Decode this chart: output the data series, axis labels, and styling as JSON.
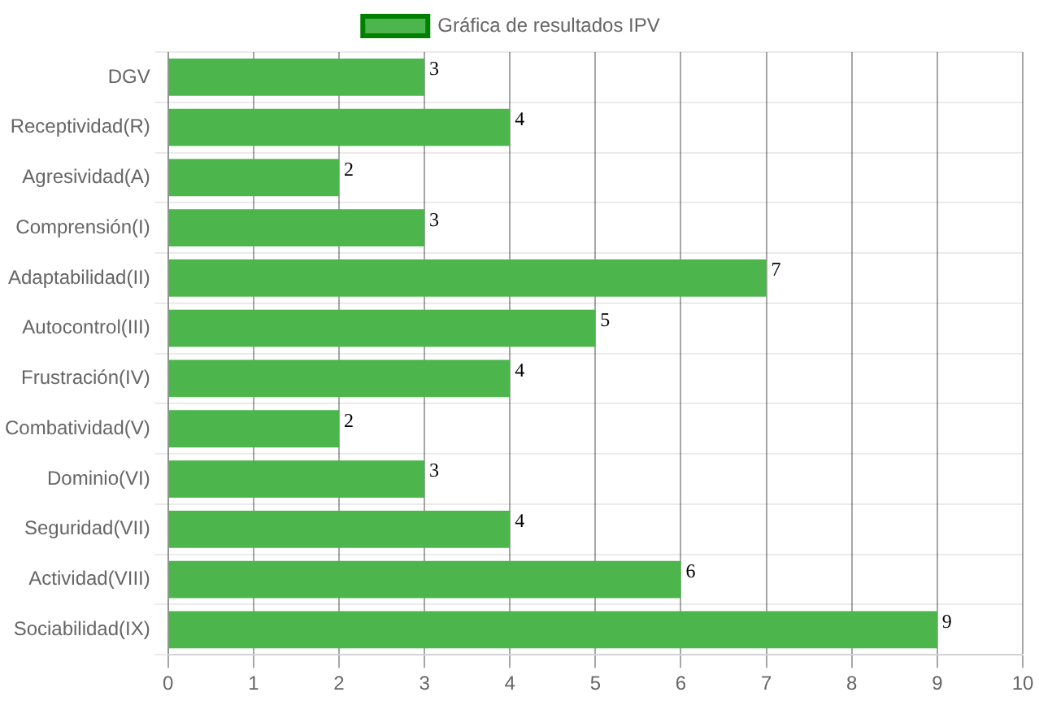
{
  "chart_data": {
    "type": "bar",
    "orientation": "horizontal",
    "categories": [
      "DGV",
      "Receptividad(R)",
      "Agresividad(A)",
      "Comprensión(I)",
      "Adaptabilidad(II)",
      "Autocontrol(III)",
      "Frustración(IV)",
      "Combatividad(V)",
      "Dominio(VI)",
      "Seguridad(VII)",
      "Actividad(VIII)",
      "Sociabilidad(IX)"
    ],
    "series": [
      {
        "name": "Gráfica de resultados IPV",
        "color": "#4cb54c",
        "values": [
          3,
          4,
          2,
          3,
          7,
          5,
          4,
          2,
          3,
          4,
          6,
          9
        ]
      }
    ],
    "xlim": [
      0,
      10
    ],
    "xticks": [
      0,
      1,
      2,
      3,
      4,
      5,
      6,
      7,
      8,
      9,
      10
    ],
    "grid": true,
    "legend": "top",
    "data_labels": true
  }
}
